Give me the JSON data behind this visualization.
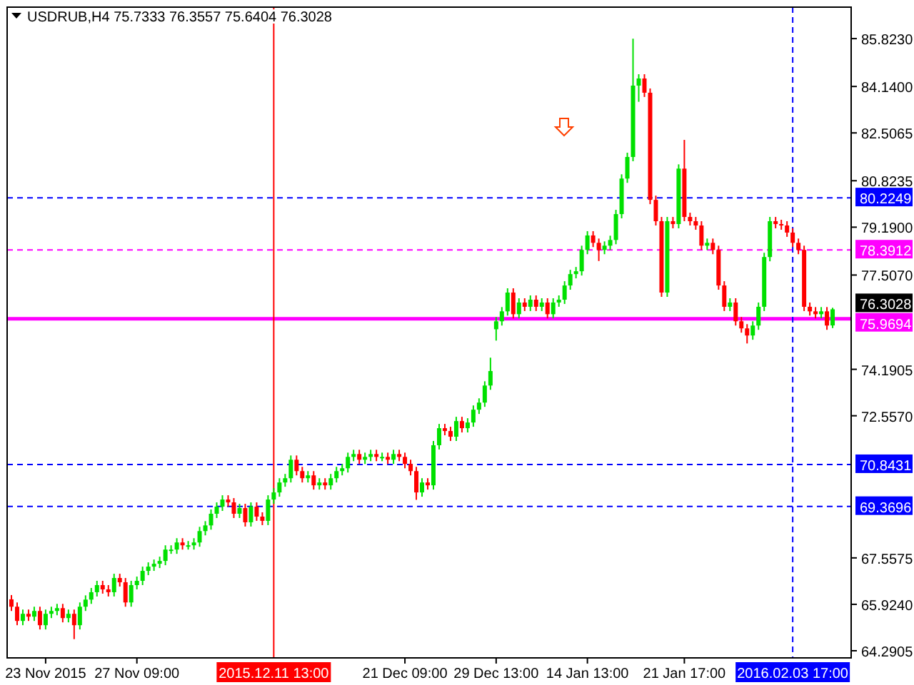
{
  "chart_data": {
    "type": "candlestick",
    "title": "USDRUB,H4  75.7333 76.3557 75.6404 76.3028",
    "categories": [
      null,
      null,
      null,
      null,
      null,
      null,
      "23 Nov 2015",
      null,
      null,
      null,
      null,
      null,
      null,
      null,
      null,
      null,
      null,
      null,
      null,
      null,
      null,
      null,
      "27 Nov 09:00",
      null,
      null,
      null,
      null,
      null,
      null,
      null,
      null,
      null,
      null,
      null,
      null,
      null,
      null,
      null,
      null,
      null,
      null,
      null,
      null,
      null,
      null,
      null,
      "2015.12.11 13:00",
      null,
      null,
      null,
      null,
      null,
      null,
      null,
      null,
      null,
      null,
      null,
      null,
      null,
      null,
      null,
      null,
      null,
      null,
      null,
      null,
      null,
      null,
      "21 Dec 09:00",
      null,
      null,
      null,
      null,
      null,
      null,
      null,
      null,
      null,
      null,
      null,
      null,
      null,
      null,
      null,
      "29 Dec 13:00",
      null,
      null,
      null,
      null,
      null,
      null,
      null,
      null,
      null,
      null,
      null,
      null,
      null,
      null,
      null,
      "14 Jan 13:00",
      null,
      null,
      null,
      null,
      null,
      null,
      null,
      null,
      null,
      null,
      null,
      null,
      null,
      null,
      null,
      null,
      "21 Jan 17:00",
      null,
      null,
      null,
      null,
      null,
      null,
      null,
      null,
      null,
      null,
      null,
      null,
      null,
      null,
      null,
      null,
      null,
      null,
      "2016.02.03 17:00",
      null,
      null,
      null,
      null,
      null,
      null,
      null
    ],
    "ohlc": [
      [
        66.1,
        66.25,
        65.69,
        65.84
      ],
      [
        65.84,
        65.99,
        65.19,
        65.34
      ],
      [
        65.34,
        65.74,
        65.19,
        65.59
      ],
      [
        65.59,
        65.74,
        65.34,
        65.49
      ],
      [
        65.49,
        65.84,
        65.34,
        65.69
      ],
      [
        65.69,
        65.84,
        65.04,
        65.19
      ],
      [
        65.19,
        65.74,
        65.04,
        65.59
      ],
      [
        65.59,
        65.84,
        65.44,
        65.69
      ],
      [
        65.69,
        65.94,
        65.54,
        65.79
      ],
      [
        65.79,
        65.94,
        65.29,
        65.44
      ],
      [
        65.44,
        65.74,
        65.29,
        65.59
      ],
      [
        65.59,
        65.74,
        64.7,
        65.19
      ],
      [
        65.19,
        65.99,
        65.04,
        65.84
      ],
      [
        65.84,
        66.24,
        65.69,
        66.09
      ],
      [
        66.09,
        66.5,
        65.94,
        66.35
      ],
      [
        66.35,
        66.75,
        66.2,
        66.6
      ],
      [
        66.6,
        66.75,
        66.3,
        66.45
      ],
      [
        66.45,
        66.6,
        66.2,
        66.35
      ],
      [
        66.35,
        67.0,
        66.2,
        66.85
      ],
      [
        66.85,
        67.0,
        66.55,
        66.7
      ],
      [
        66.7,
        66.85,
        65.84,
        65.99
      ],
      [
        65.99,
        66.75,
        65.84,
        66.6
      ],
      [
        66.6,
        66.9,
        66.45,
        66.75
      ],
      [
        66.75,
        67.25,
        66.6,
        67.1
      ],
      [
        67.1,
        67.4,
        66.95,
        67.25
      ],
      [
        67.25,
        67.5,
        67.1,
        67.35
      ],
      [
        67.35,
        67.6,
        67.2,
        67.45
      ],
      [
        67.45,
        68.0,
        67.3,
        67.85
      ],
      [
        67.85,
        68.0,
        67.7,
        67.85
      ],
      [
        67.85,
        68.25,
        67.7,
        68.1
      ],
      [
        68.1,
        68.25,
        67.85,
        68.0
      ],
      [
        68.0,
        68.15,
        67.85,
        68.0
      ],
      [
        68.0,
        68.25,
        67.85,
        68.1
      ],
      [
        68.1,
        68.65,
        67.95,
        68.5
      ],
      [
        68.5,
        68.85,
        68.35,
        68.7
      ],
      [
        68.7,
        69.26,
        68.55,
        69.11
      ],
      [
        69.11,
        69.51,
        68.96,
        69.36
      ],
      [
        69.36,
        69.76,
        69.21,
        69.61
      ],
      [
        69.61,
        69.76,
        69.36,
        69.51
      ],
      [
        69.51,
        69.66,
        68.96,
        69.11
      ],
      [
        69.11,
        69.46,
        68.96,
        69.31
      ],
      [
        69.31,
        69.46,
        68.66,
        68.81
      ],
      [
        68.81,
        69.51,
        68.66,
        69.36
      ],
      [
        69.36,
        69.51,
        68.86,
        69.01
      ],
      [
        69.01,
        69.16,
        68.71,
        68.86
      ],
      [
        68.86,
        69.76,
        68.71,
        69.61
      ],
      [
        69.61,
        70.01,
        69.46,
        69.86
      ],
      [
        69.86,
        70.36,
        69.71,
        70.21
      ],
      [
        70.21,
        70.51,
        70.06,
        70.36
      ],
      [
        70.36,
        71.16,
        70.21,
        71.01
      ],
      [
        71.01,
        71.16,
        70.46,
        70.61
      ],
      [
        70.61,
        70.76,
        70.21,
        70.36
      ],
      [
        70.36,
        70.61,
        70.21,
        70.46
      ],
      [
        70.46,
        70.61,
        69.96,
        70.11
      ],
      [
        70.11,
        70.36,
        69.96,
        70.21
      ],
      [
        70.21,
        70.36,
        69.96,
        70.11
      ],
      [
        70.11,
        70.51,
        69.96,
        70.36
      ],
      [
        70.36,
        70.76,
        70.21,
        70.61
      ],
      [
        70.61,
        70.86,
        70.46,
        70.71
      ],
      [
        70.71,
        71.26,
        70.56,
        71.11
      ],
      [
        71.11,
        71.36,
        70.96,
        71.21
      ],
      [
        71.21,
        71.36,
        70.86,
        71.01
      ],
      [
        71.01,
        71.26,
        70.86,
        71.11
      ],
      [
        71.11,
        71.36,
        70.96,
        71.21
      ],
      [
        71.21,
        71.36,
        70.96,
        71.11
      ],
      [
        71.11,
        71.26,
        70.96,
        71.11
      ],
      [
        71.11,
        71.26,
        70.86,
        71.01
      ],
      [
        71.01,
        71.36,
        70.86,
        71.21
      ],
      [
        71.21,
        71.36,
        70.96,
        71.11
      ],
      [
        71.11,
        71.26,
        70.71,
        70.86
      ],
      [
        70.86,
        71.01,
        70.46,
        70.61
      ],
      [
        70.61,
        70.76,
        69.6,
        69.86
      ],
      [
        69.86,
        70.36,
        69.71,
        70.21
      ],
      [
        70.21,
        70.36,
        69.96,
        70.11
      ],
      [
        70.11,
        71.67,
        69.96,
        71.52
      ],
      [
        71.52,
        72.27,
        71.37,
        72.12
      ],
      [
        72.12,
        72.27,
        71.87,
        72.02
      ],
      [
        72.02,
        72.17,
        71.67,
        71.82
      ],
      [
        71.82,
        72.52,
        71.67,
        72.37
      ],
      [
        72.37,
        72.52,
        71.97,
        72.12
      ],
      [
        72.12,
        72.47,
        71.97,
        72.32
      ],
      [
        72.32,
        72.92,
        72.17,
        72.77
      ],
      [
        72.77,
        73.17,
        72.62,
        73.02
      ],
      [
        73.02,
        73.77,
        72.87,
        73.62
      ],
      [
        73.62,
        74.6,
        73.47,
        74.13
      ],
      [
        75.6,
        76.03,
        75.2,
        75.88
      ],
      [
        75.88,
        76.38,
        75.73,
        76.23
      ],
      [
        76.23,
        77.04,
        76.08,
        76.89
      ],
      [
        76.89,
        77.04,
        75.98,
        76.13
      ],
      [
        76.13,
        76.69,
        75.98,
        76.54
      ],
      [
        76.54,
        76.69,
        76.24,
        76.39
      ],
      [
        76.39,
        76.79,
        76.24,
        76.64
      ],
      [
        76.64,
        76.79,
        76.24,
        76.39
      ],
      [
        76.39,
        76.69,
        76.24,
        76.54
      ],
      [
        76.54,
        76.69,
        75.98,
        76.13
      ],
      [
        76.13,
        76.69,
        75.98,
        76.54
      ],
      [
        76.54,
        76.79,
        76.39,
        76.64
      ],
      [
        76.64,
        77.29,
        76.49,
        77.14
      ],
      [
        77.14,
        77.69,
        76.99,
        77.54
      ],
      [
        77.54,
        77.79,
        77.39,
        77.64
      ],
      [
        77.64,
        78.54,
        77.49,
        78.39
      ],
      [
        78.39,
        79.05,
        78.24,
        78.9
      ],
      [
        78.9,
        79.05,
        78.49,
        78.64
      ],
      [
        78.64,
        78.79,
        78.0,
        78.39
      ],
      [
        78.39,
        78.69,
        78.24,
        78.54
      ],
      [
        78.54,
        78.89,
        78.39,
        78.74
      ],
      [
        78.74,
        79.8,
        78.59,
        79.65
      ],
      [
        79.65,
        81.05,
        79.5,
        80.9
      ],
      [
        80.9,
        81.81,
        80.75,
        81.66
      ],
      [
        81.66,
        85.82,
        81.51,
        84.17
      ],
      [
        84.17,
        84.57,
        83.6,
        84.42
      ],
      [
        84.42,
        84.57,
        83.77,
        83.92
      ],
      [
        83.92,
        84.07,
        80.0,
        80.15
      ],
      [
        80.15,
        80.3,
        79.25,
        79.4
      ],
      [
        79.4,
        79.55,
        76.74,
        76.89
      ],
      [
        76.89,
        79.55,
        76.74,
        79.4
      ],
      [
        79.4,
        79.55,
        79.15,
        79.3
      ],
      [
        79.3,
        81.4,
        79.15,
        81.25
      ],
      [
        81.25,
        82.26,
        79.4,
        79.55
      ],
      [
        79.55,
        79.7,
        79.25,
        79.4
      ],
      [
        79.4,
        79.55,
        79.1,
        79.25
      ],
      [
        79.25,
        79.4,
        78.39,
        78.54
      ],
      [
        78.54,
        78.79,
        78.39,
        78.64
      ],
      [
        78.64,
        78.79,
        78.24,
        78.39
      ],
      [
        78.39,
        78.54,
        76.99,
        77.14
      ],
      [
        77.14,
        77.29,
        76.24,
        76.39
      ],
      [
        76.39,
        76.69,
        76.24,
        76.54
      ],
      [
        76.54,
        76.69,
        75.73,
        75.88
      ],
      [
        75.88,
        76.03,
        75.48,
        75.63
      ],
      [
        75.63,
        75.78,
        75.1,
        75.38
      ],
      [
        75.38,
        75.88,
        75.23,
        75.73
      ],
      [
        75.73,
        76.54,
        75.58,
        76.39
      ],
      [
        76.39,
        78.29,
        76.24,
        78.14
      ],
      [
        78.14,
        79.55,
        77.99,
        79.4
      ],
      [
        79.4,
        79.55,
        79.15,
        79.3
      ],
      [
        79.3,
        79.45,
        79.1,
        79.25
      ],
      [
        79.25,
        79.4,
        78.85,
        79.0
      ],
      [
        79.0,
        79.15,
        78.49,
        78.64
      ],
      [
        78.64,
        78.79,
        78.24,
        78.39
      ],
      [
        78.39,
        78.54,
        76.24,
        76.39
      ],
      [
        76.39,
        76.54,
        76.08,
        76.23
      ],
      [
        76.23,
        76.38,
        75.98,
        76.13
      ],
      [
        76.13,
        76.38,
        75.98,
        76.23
      ],
      [
        76.23,
        76.38,
        75.58,
        75.73
      ],
      [
        75.7333,
        76.3557,
        75.6404,
        76.3028
      ]
    ],
    "ylim": [
      64.04,
      86.93
    ],
    "yticks": [
      {
        "value": 85.823,
        "label": "85.8230"
      },
      {
        "value": 84.14,
        "label": "84.1400"
      },
      82.5065,
      {
        "value": 80.8235,
        "label": "80.8235"
      },
      {
        "value": 79.19,
        "label": "79.1900"
      },
      {
        "value": 77.507,
        "label": "77.5070"
      },
      74.1905,
      {
        "value": 72.557,
        "label": "72.5570"
      },
      67.5575,
      {
        "value": 65.924,
        "label": "65.9240"
      },
      64.2905
    ],
    "ref_lines": [
      {
        "axis": "y",
        "value": 80.2249,
        "label": "80.2249",
        "color": "#0000ff",
        "line_style": "dashed"
      },
      {
        "axis": "y",
        "value": 78.3912,
        "label": "78.3912",
        "color": "#ff00ff",
        "line_style": "dashed"
      },
      {
        "axis": "y",
        "value": 75.9694,
        "label": "75.9694",
        "color": "#ff00ff",
        "line_style": "solid"
      },
      {
        "axis": "y",
        "value": 70.8431,
        "label": "70.8431",
        "color": "#0000ff",
        "line_style": "dashed"
      },
      {
        "axis": "y",
        "value": 69.3696,
        "label": "69.3696",
        "color": "#0000ff",
        "line_style": "dashed"
      },
      {
        "axis": "x",
        "value": "2015.12.11 13:00",
        "color": "#ff0000",
        "line_style": "solid"
      },
      {
        "axis": "x",
        "value": "2016.02.03 17:00",
        "color": "#0000ff",
        "line_style": "dashed"
      }
    ],
    "annotations": [
      "76.3028"
    ]
  }
}
